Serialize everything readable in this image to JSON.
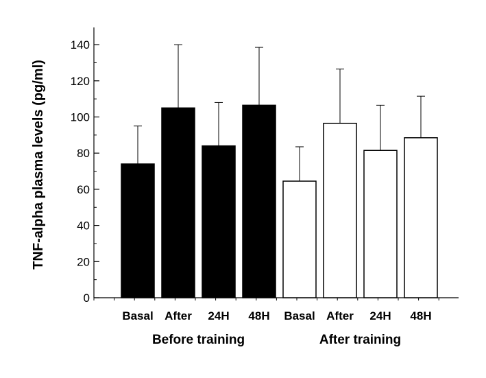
{
  "chart_data": {
    "type": "bar",
    "ylabel": "TNF-alpha plasma levels (pg/ml)",
    "ylim": [
      0,
      150
    ],
    "yticks": [
      0,
      20,
      40,
      60,
      80,
      100,
      120,
      140
    ],
    "groups": [
      {
        "label": "Before training",
        "fill": "#000000",
        "bars": [
          {
            "category": "Basal",
            "value": 74,
            "error": 21
          },
          {
            "category": "After",
            "value": 105,
            "error": 35
          },
          {
            "category": "24H",
            "value": 84,
            "error": 24
          },
          {
            "category": "48H",
            "value": 106.5,
            "error": 32
          }
        ]
      },
      {
        "label": "After training",
        "fill": "#ffffff",
        "bars": [
          {
            "category": "Basal",
            "value": 64.5,
            "error": 19
          },
          {
            "category": "After",
            "value": 96.5,
            "error": 30
          },
          {
            "category": "24H",
            "value": 81.5,
            "error": 25
          },
          {
            "category": "48H",
            "value": 88.5,
            "error": 23
          }
        ]
      }
    ]
  }
}
